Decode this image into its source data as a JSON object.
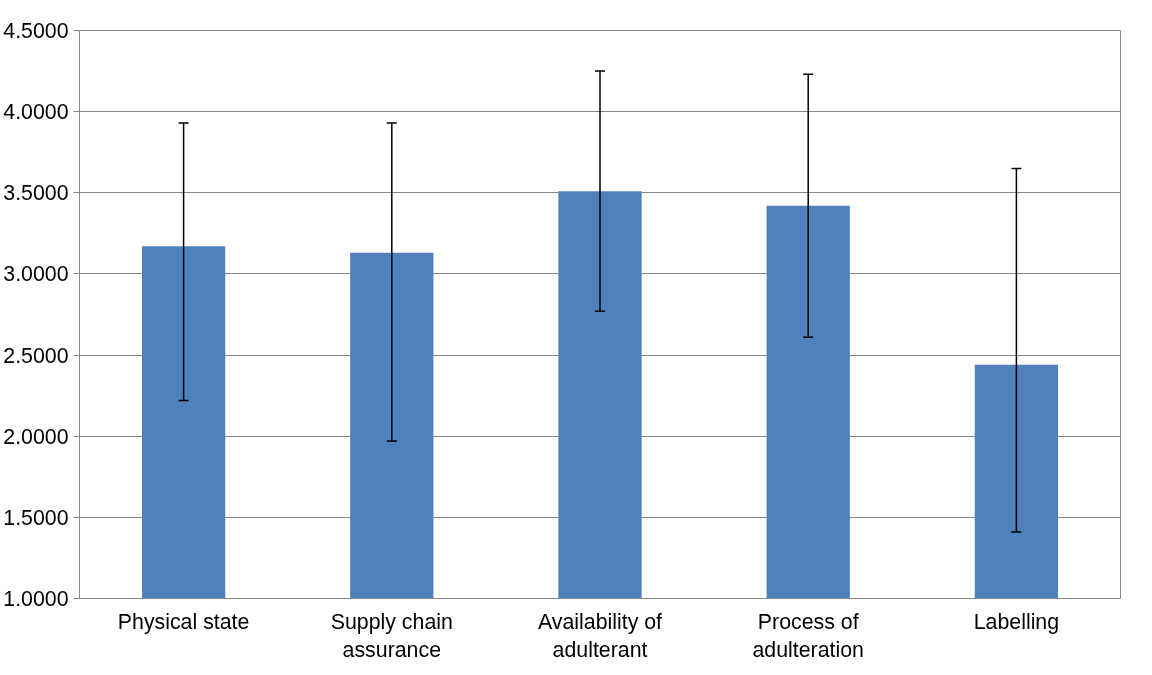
{
  "chart_data": {
    "type": "bar",
    "categories": [
      "Physical state",
      "Supply chain assurance",
      "Availability of adulterant",
      "Process of adulteration",
      "Labelling"
    ],
    "values": [
      3.17,
      3.13,
      3.51,
      3.42,
      2.44
    ],
    "errors": [
      [
        2.22,
        3.93
      ],
      [
        1.97,
        3.93
      ],
      [
        2.77,
        4.25
      ],
      [
        2.61,
        4.23
      ],
      [
        1.41,
        3.65
      ]
    ],
    "color": "#4f81bd",
    "ylim": [
      1.0,
      4.5
    ],
    "yticks": [
      {
        "value": 1.0,
        "label": "1.0000"
      },
      {
        "value": 1.5,
        "label": "1.5000"
      },
      {
        "value": 2.0,
        "label": "2.0000"
      },
      {
        "value": 2.5,
        "label": "2.5000"
      },
      {
        "value": 3.0,
        "label": "3.0000"
      },
      {
        "value": 3.5,
        "label": "3.5000"
      },
      {
        "value": 4.0,
        "label": "4.0000"
      },
      {
        "value": 4.5,
        "label": "4.5000"
      }
    ],
    "grid": "y"
  }
}
